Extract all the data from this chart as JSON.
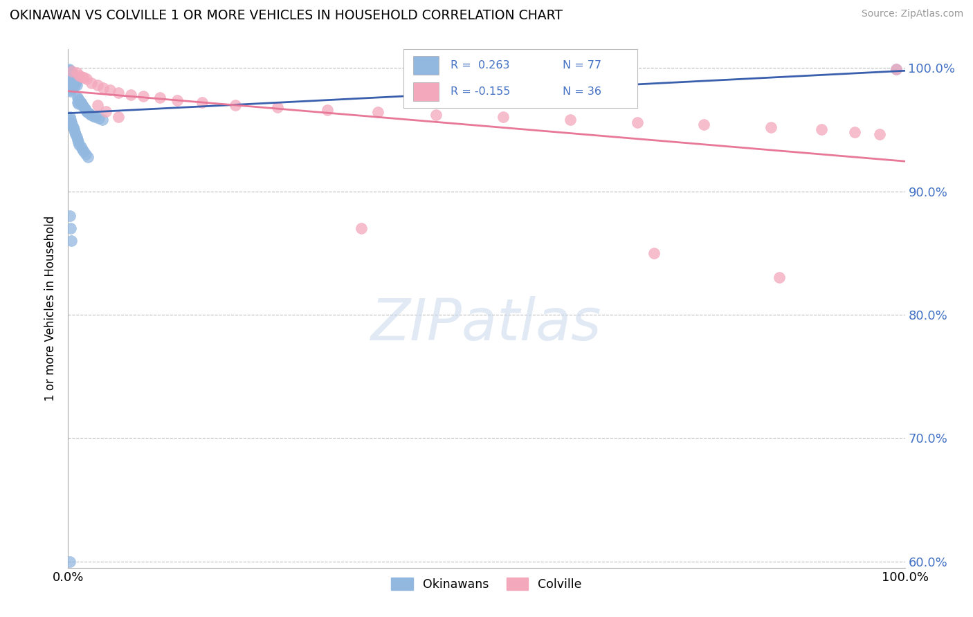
{
  "title": "OKINAWAN VS COLVILLE 1 OR MORE VEHICLES IN HOUSEHOLD CORRELATION CHART",
  "source": "Source: ZipAtlas.com",
  "ylabel": "1 or more Vehicles in Household",
  "xlim": [
    0.0,
    1.0
  ],
  "ylim": [
    0.595,
    1.015
  ],
  "yticks": [
    0.6,
    0.7,
    0.8,
    0.9,
    1.0
  ],
  "ytick_labels": [
    "60.0%",
    "70.0%",
    "80.0%",
    "90.0%",
    "100.0%"
  ],
  "okinawan_color": "#92B8E0",
  "colville_color": "#F4A8BC",
  "okinawan_line_color": "#3A5FAD",
  "colville_line_color": "#E87898",
  "background_color": "#FFFFFF",
  "okinawan_x": [
    0.001,
    0.001,
    0.001,
    0.001,
    0.002,
    0.002,
    0.002,
    0.002,
    0.002,
    0.003,
    0.003,
    0.003,
    0.003,
    0.003,
    0.004,
    0.004,
    0.004,
    0.004,
    0.005,
    0.005,
    0.005,
    0.005,
    0.006,
    0.006,
    0.006,
    0.007,
    0.007,
    0.007,
    0.008,
    0.008,
    0.009,
    0.009,
    0.01,
    0.01,
    0.011,
    0.011,
    0.012,
    0.012,
    0.013,
    0.014,
    0.015,
    0.016,
    0.017,
    0.018,
    0.019,
    0.02,
    0.021,
    0.022,
    0.023,
    0.025,
    0.027,
    0.03,
    0.033,
    0.037,
    0.041,
    0.002,
    0.003,
    0.004,
    0.005,
    0.006,
    0.007,
    0.008,
    0.009,
    0.01,
    0.011,
    0.012,
    0.013,
    0.015,
    0.017,
    0.019,
    0.021,
    0.024,
    0.002,
    0.003,
    0.004,
    0.002,
    0.99
  ],
  "okinawan_y": [
    0.999,
    0.996,
    0.993,
    0.988,
    0.998,
    0.994,
    0.99,
    0.986,
    0.982,
    0.997,
    0.993,
    0.989,
    0.985,
    0.981,
    0.996,
    0.992,
    0.988,
    0.984,
    0.995,
    0.991,
    0.987,
    0.983,
    0.994,
    0.99,
    0.986,
    0.993,
    0.989,
    0.985,
    0.992,
    0.988,
    0.991,
    0.987,
    0.99,
    0.986,
    0.976,
    0.972,
    0.975,
    0.971,
    0.974,
    0.973,
    0.972,
    0.971,
    0.97,
    0.969,
    0.968,
    0.967,
    0.966,
    0.965,
    0.964,
    0.963,
    0.962,
    0.961,
    0.96,
    0.959,
    0.958,
    0.96,
    0.958,
    0.956,
    0.954,
    0.952,
    0.95,
    0.948,
    0.946,
    0.944,
    0.942,
    0.94,
    0.938,
    0.936,
    0.934,
    0.932,
    0.93,
    0.928,
    0.88,
    0.87,
    0.86,
    0.6,
    0.999
  ],
  "colville_x": [
    0.005,
    0.01,
    0.013,
    0.016,
    0.019,
    0.022,
    0.028,
    0.035,
    0.042,
    0.05,
    0.06,
    0.075,
    0.09,
    0.11,
    0.13,
    0.16,
    0.2,
    0.25,
    0.31,
    0.37,
    0.44,
    0.52,
    0.6,
    0.68,
    0.76,
    0.84,
    0.9,
    0.94,
    0.97,
    0.99,
    0.035,
    0.045,
    0.06,
    0.35,
    0.7,
    0.85
  ],
  "colville_y": [
    0.997,
    0.996,
    0.994,
    0.993,
    0.992,
    0.991,
    0.988,
    0.986,
    0.984,
    0.982,
    0.98,
    0.978,
    0.977,
    0.976,
    0.974,
    0.972,
    0.97,
    0.968,
    0.966,
    0.964,
    0.962,
    0.96,
    0.958,
    0.956,
    0.954,
    0.952,
    0.95,
    0.948,
    0.946,
    0.999,
    0.97,
    0.965,
    0.96,
    0.87,
    0.85,
    0.83
  ]
}
